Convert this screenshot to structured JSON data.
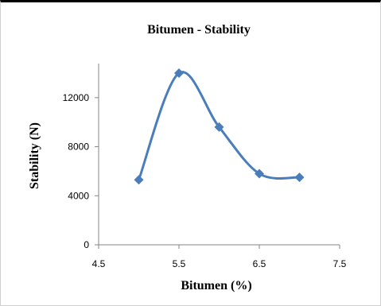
{
  "chart_data": {
    "type": "line",
    "title": "Bitumen  - Stability",
    "xlabel": "Bitumen  (%)",
    "ylabel": "Stability  (N)",
    "xlim": [
      4.5,
      7.5
    ],
    "ylim": [
      0,
      14000
    ],
    "x_ticks": [
      "4.5",
      "5.5",
      "6.5",
      "7.5"
    ],
    "y_ticks": [
      "0",
      "4000",
      "8000",
      "12000"
    ],
    "grid": false,
    "smooth": true,
    "series": [
      {
        "x": [
          5.0,
          5.5,
          6.0,
          6.5,
          7.0
        ],
        "values": [
          5300,
          14000,
          9600,
          5800,
          5500
        ]
      }
    ],
    "color": "#4a7ebb"
  }
}
